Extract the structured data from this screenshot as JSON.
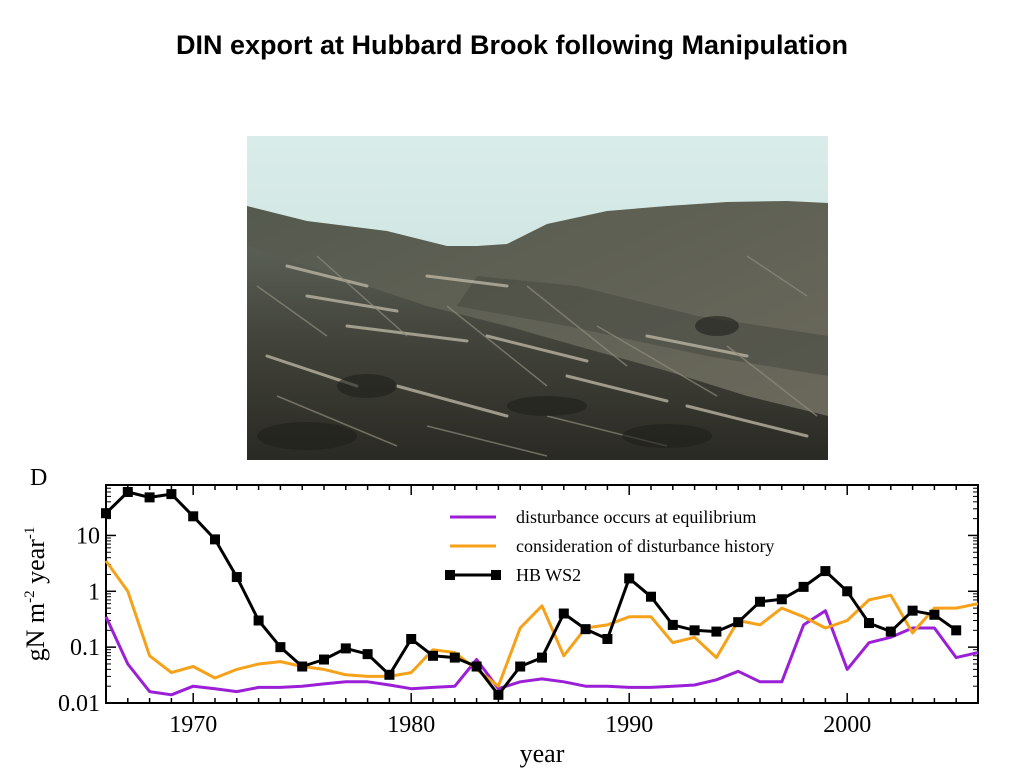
{
  "page": {
    "title": "DIN export at Hubbard Brook following Manipulation"
  },
  "photo": {
    "description_icon": "clearcut-forest-photo"
  },
  "chart_data": {
    "type": "line",
    "panel_label": "D",
    "xlabel": "year",
    "ylabel": "gN m-2 year-1",
    "ylog": true,
    "xlim": [
      1966,
      2006
    ],
    "ylim": [
      0.01,
      80
    ],
    "xticks": [
      1970,
      1980,
      1990,
      2000
    ],
    "yticks": [
      {
        "value": 10,
        "label": "10"
      },
      {
        "value": 1,
        "label": "1"
      },
      {
        "value": 0.1,
        "label": "0.1"
      },
      {
        "value": 0.01,
        "label": "0.01"
      }
    ],
    "legend_position": "top-right",
    "series": [
      {
        "name": "disturbance occurs at equilibrium",
        "color": "#9b1fd6",
        "marker": false,
        "points": [
          [
            1966,
            0.35
          ],
          [
            1967,
            0.05
          ],
          [
            1968,
            0.016
          ],
          [
            1969,
            0.014
          ],
          [
            1970,
            0.02
          ],
          [
            1971,
            0.018
          ],
          [
            1972,
            0.016
          ],
          [
            1973,
            0.019
          ],
          [
            1974,
            0.019
          ],
          [
            1975,
            0.02
          ],
          [
            1976,
            0.022
          ],
          [
            1977,
            0.024
          ],
          [
            1978,
            0.024
          ],
          [
            1979,
            0.021
          ],
          [
            1980,
            0.018
          ],
          [
            1981,
            0.019
          ],
          [
            1982,
            0.02
          ],
          [
            1983,
            0.06
          ],
          [
            1984,
            0.018
          ],
          [
            1985,
            0.024
          ],
          [
            1986,
            0.027
          ],
          [
            1987,
            0.024
          ],
          [
            1988,
            0.02
          ],
          [
            1989,
            0.02
          ],
          [
            1990,
            0.019
          ],
          [
            1991,
            0.019
          ],
          [
            1992,
            0.02
          ],
          [
            1993,
            0.021
          ],
          [
            1994,
            0.026
          ],
          [
            1995,
            0.037
          ],
          [
            1996,
            0.024
          ],
          [
            1997,
            0.024
          ],
          [
            1998,
            0.25
          ],
          [
            1999,
            0.45
          ],
          [
            2000,
            0.04
          ],
          [
            2001,
            0.12
          ],
          [
            2002,
            0.15
          ],
          [
            2003,
            0.22
          ],
          [
            2004,
            0.22
          ],
          [
            2005,
            0.065
          ],
          [
            2006,
            0.08
          ]
        ]
      },
      {
        "name": "consideration of disturbance history",
        "color": "#f5a21a",
        "marker": false,
        "points": [
          [
            1966,
            3.5
          ],
          [
            1967,
            1.0
          ],
          [
            1968,
            0.07
          ],
          [
            1969,
            0.035
          ],
          [
            1970,
            0.045
          ],
          [
            1971,
            0.028
          ],
          [
            1972,
            0.04
          ],
          [
            1973,
            0.05
          ],
          [
            1974,
            0.055
          ],
          [
            1975,
            0.045
          ],
          [
            1976,
            0.04
          ],
          [
            1977,
            0.032
          ],
          [
            1978,
            0.03
          ],
          [
            1979,
            0.03
          ],
          [
            1980,
            0.035
          ],
          [
            1981,
            0.09
          ],
          [
            1982,
            0.08
          ],
          [
            1983,
            0.04
          ],
          [
            1984,
            0.02
          ],
          [
            1985,
            0.22
          ],
          [
            1986,
            0.55
          ],
          [
            1987,
            0.07
          ],
          [
            1988,
            0.22
          ],
          [
            1989,
            0.25
          ],
          [
            1990,
            0.35
          ],
          [
            1991,
            0.35
          ],
          [
            1992,
            0.12
          ],
          [
            1993,
            0.15
          ],
          [
            1994,
            0.065
          ],
          [
            1995,
            0.3
          ],
          [
            1996,
            0.25
          ],
          [
            1997,
            0.5
          ],
          [
            1998,
            0.35
          ],
          [
            1999,
            0.22
          ],
          [
            2000,
            0.3
          ],
          [
            2001,
            0.7
          ],
          [
            2002,
            0.85
          ],
          [
            2003,
            0.18
          ],
          [
            2004,
            0.5
          ],
          [
            2005,
            0.5
          ],
          [
            2006,
            0.6
          ]
        ]
      },
      {
        "name": "HB WS2",
        "color": "#000000",
        "marker": true,
        "points": [
          [
            1966,
            25
          ],
          [
            1967,
            60
          ],
          [
            1968,
            48
          ],
          [
            1969,
            55
          ],
          [
            1970,
            22
          ],
          [
            1971,
            8.5
          ],
          [
            1972,
            1.8
          ],
          [
            1973,
            0.3
          ],
          [
            1974,
            0.1
          ],
          [
            1975,
            0.045
          ],
          [
            1976,
            0.06
          ],
          [
            1977,
            0.095
          ],
          [
            1978,
            0.075
          ],
          [
            1979,
            0.032
          ],
          [
            1980,
            0.14
          ],
          [
            1981,
            0.07
          ],
          [
            1982,
            0.065
          ],
          [
            1983,
            0.045
          ],
          [
            1984,
            0.014
          ],
          [
            1985,
            0.045
          ],
          [
            1986,
            0.065
          ],
          [
            1987,
            0.4
          ],
          [
            1988,
            0.21
          ],
          [
            1989,
            0.14
          ],
          [
            1990,
            1.7
          ],
          [
            1991,
            0.8
          ],
          [
            1992,
            0.25
          ],
          [
            1993,
            0.2
          ],
          [
            1994,
            0.19
          ],
          [
            1995,
            0.28
          ],
          [
            1996,
            0.65
          ],
          [
            1997,
            0.72
          ],
          [
            1998,
            1.2
          ],
          [
            1999,
            2.3
          ],
          [
            2000,
            1.0
          ],
          [
            2001,
            0.27
          ],
          [
            2002,
            0.19
          ],
          [
            2003,
            0.45
          ],
          [
            2004,
            0.38
          ],
          [
            2005,
            0.2
          ]
        ]
      }
    ]
  }
}
